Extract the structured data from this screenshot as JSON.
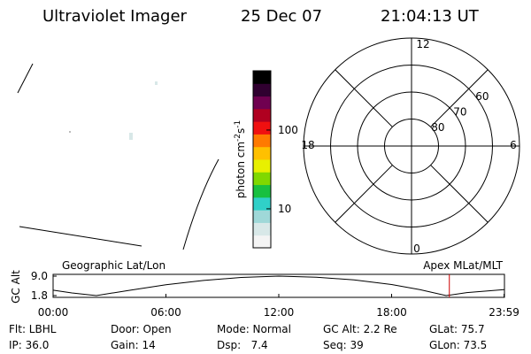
{
  "header": {
    "title": "Ultraviolet Imager",
    "date": "25 Dec 07",
    "time": "21:04:13 UT"
  },
  "colorbar": {
    "label": "photon cm",
    "exp1": "-2",
    "unit2": "s",
    "exp2": "-1",
    "log": true,
    "lim": [
      3.2,
      565
    ],
    "ticks": [
      10,
      100
    ],
    "colors": [
      "#f4f4f4",
      "#d8e8e8",
      "#9fd8d8",
      "#30d0c8",
      "#18c040",
      "#80d800",
      "#e8f000",
      "#ffc000",
      "#ff7a00",
      "#f01010",
      "#b00020",
      "#700050",
      "#300030",
      "#000000"
    ]
  },
  "polar": {
    "mlt_labels": [
      "12",
      "6",
      "0",
      "18"
    ],
    "lat_labels": [
      60,
      70,
      80
    ]
  },
  "orbit_plot": {
    "y_label": "GC Alt",
    "left_title": "Geographic Lat/Lon",
    "right_title": "Apex MLat/MLT",
    "xlim": [
      0,
      24
    ],
    "xticks": [
      {
        "value": 0,
        "label": "00:00"
      },
      {
        "value": 6,
        "label": "06:00"
      },
      {
        "value": 12,
        "label": "12:00"
      },
      {
        "value": 18,
        "label": "18:00"
      },
      {
        "value": 23.98,
        "label": "23:59"
      }
    ],
    "ylim": [
      1.8,
      9.0
    ],
    "yticks": [
      {
        "value": 9.0,
        "label": "9.0"
      },
      1.8
    ],
    "x": [
      0,
      1,
      2.3,
      4,
      6,
      8,
      10,
      12,
      14,
      16,
      18,
      19.5,
      20.9,
      22,
      23.98
    ],
    "values": [
      3.8,
      2.8,
      1.8,
      3.7,
      5.8,
      7.4,
      8.5,
      9.0,
      8.6,
      7.6,
      5.9,
      4.0,
      1.8,
      2.9,
      4.0
    ],
    "marker_time": 21.07,
    "marker_color": "#cc0000"
  },
  "info": {
    "rows": [
      [
        "Flt: LBHL",
        "Door: Open",
        "Mode: Normal",
        "GC Alt: 2.2 Re",
        "GLat: 75.7"
      ],
      [
        "IP: 36.0",
        "Gain: 14",
        "Dsp:   7.4",
        "Seq: 39",
        "GLon: 73.5"
      ]
    ]
  }
}
